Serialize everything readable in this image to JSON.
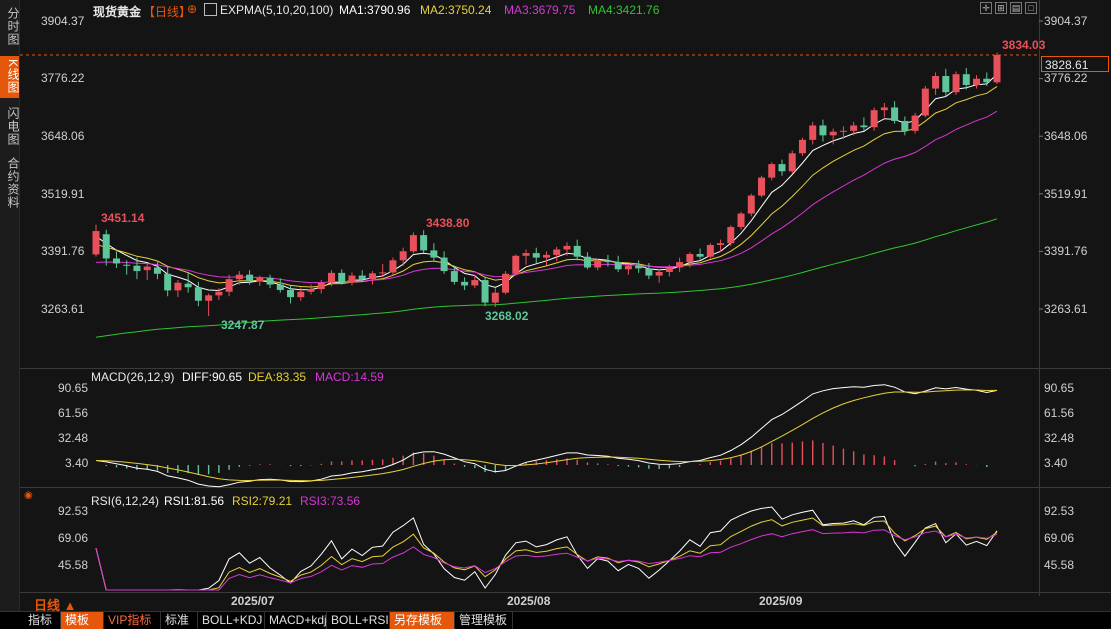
{
  "left_tabs": [
    {
      "label": "分时图",
      "active": false
    },
    {
      "label": "K线图",
      "active": true
    },
    {
      "label": "闪电图",
      "active": false
    },
    {
      "label": "合约资料",
      "active": false
    }
  ],
  "header": {
    "symbol": "现货黄金",
    "period": "【日线】",
    "expma": "EXPMA(5,10,20,100)",
    "ma1": "MA1:3790.96",
    "ma2": "MA2:3750.24",
    "ma3": "MA3:3679.75",
    "ma4": "MA4:3421.76"
  },
  "price_axis": [
    "3904.37",
    "3776.22",
    "3648.06",
    "3519.91",
    "3391.76",
    "3263.61"
  ],
  "current_price_tag": "3828.61",
  "annotations": {
    "high": "3834.03",
    "peak1": "3451.14",
    "peak2": "3438.80",
    "low1": "3247.87",
    "low2": "3268.02"
  },
  "macd": {
    "title": "MACD(26,12,9)",
    "diff": "DIFF:90.65",
    "dea": "DEA:83.35",
    "macd": "MACD:14.59",
    "axis": [
      "90.65",
      "61.56",
      "32.48",
      "3.40"
    ]
  },
  "rsi": {
    "title": "RSI(6,12,24)",
    "rsi1": "RSI1:81.56",
    "rsi2": "RSI2:79.21",
    "rsi3": "RSI3:73.56",
    "axis": [
      "92.53",
      "69.06",
      "45.58"
    ]
  },
  "x_axis": [
    "2025/07",
    "2025/08",
    "2025/09"
  ],
  "period_label": "日线",
  "bottom_tabs": [
    {
      "label": "指标",
      "style": "normal"
    },
    {
      "label": "模板",
      "style": "orange"
    },
    {
      "label": "VIP指标",
      "style": "vip"
    },
    {
      "label": "标准",
      "style": "normal"
    },
    {
      "label": "BOLL+KDJ",
      "style": "normal"
    },
    {
      "label": "MACD+kdj",
      "style": "normal"
    },
    {
      "label": "BOLL+RSI",
      "style": "normal"
    },
    {
      "label": "另存模板",
      "style": "orange"
    },
    {
      "label": "管理模板",
      "style": "normal"
    }
  ],
  "colors": {
    "up": "#e8505b",
    "down": "#5fc59a",
    "ma1": "#ffffff",
    "ma2": "#e8d03a",
    "ma3": "#d637d6",
    "ma4": "#2fc52f",
    "accent": "#e5580c"
  },
  "chart_data": {
    "type": "candlestick",
    "instrument": "现货黄金",
    "period": "日线",
    "ohlc": [
      [
        3385,
        3451.14,
        3380,
        3437
      ],
      [
        3430,
        3440,
        3360,
        3376
      ],
      [
        3376,
        3392,
        3355,
        3365
      ],
      [
        3362,
        3372,
        3340,
        3360
      ],
      [
        3360,
        3378,
        3330,
        3348
      ],
      [
        3350,
        3366,
        3328,
        3358
      ],
      [
        3356,
        3368,
        3330,
        3342
      ],
      [
        3342,
        3358,
        3292,
        3305
      ],
      [
        3305,
        3328,
        3290,
        3322
      ],
      [
        3320,
        3345,
        3300,
        3312
      ],
      [
        3312,
        3324,
        3270,
        3282
      ],
      [
        3282,
        3298,
        3247.87,
        3294
      ],
      [
        3294,
        3310,
        3284,
        3302
      ],
      [
        3302,
        3340,
        3292,
        3330
      ],
      [
        3330,
        3348,
        3318,
        3340
      ],
      [
        3340,
        3350,
        3318,
        3325
      ],
      [
        3325,
        3338,
        3315,
        3333
      ],
      [
        3333,
        3340,
        3310,
        3318
      ],
      [
        3318,
        3332,
        3300,
        3306
      ],
      [
        3306,
        3316,
        3276,
        3290
      ],
      [
        3290,
        3312,
        3282,
        3302
      ],
      [
        3302,
        3318,
        3296,
        3308
      ],
      [
        3308,
        3328,
        3298,
        3322
      ],
      [
        3322,
        3350,
        3314,
        3344
      ],
      [
        3344,
        3352,
        3318,
        3322
      ],
      [
        3322,
        3345,
        3316,
        3338
      ],
      [
        3338,
        3350,
        3324,
        3330
      ],
      [
        3330,
        3348,
        3318,
        3343
      ],
      [
        3343,
        3364,
        3334,
        3345
      ],
      [
        3345,
        3378,
        3340,
        3372
      ],
      [
        3372,
        3400,
        3360,
        3392
      ],
      [
        3392,
        3434,
        3388,
        3428
      ],
      [
        3428,
        3438.8,
        3388,
        3394
      ],
      [
        3394,
        3410,
        3372,
        3378
      ],
      [
        3378,
        3392,
        3342,
        3348
      ],
      [
        3348,
        3360,
        3318,
        3324
      ],
      [
        3324,
        3334,
        3306,
        3316
      ],
      [
        3316,
        3340,
        3310,
        3328
      ],
      [
        3328,
        3336,
        3270,
        3278
      ],
      [
        3278,
        3310,
        3268.02,
        3300
      ],
      [
        3300,
        3348,
        3296,
        3342
      ],
      [
        3342,
        3385,
        3338,
        3382
      ],
      [
        3382,
        3396,
        3362,
        3388
      ],
      [
        3388,
        3400,
        3366,
        3378
      ],
      [
        3378,
        3392,
        3360,
        3384
      ],
      [
        3384,
        3402,
        3370,
        3396
      ],
      [
        3396,
        3412,
        3382,
        3404
      ],
      [
        3404,
        3418,
        3372,
        3380
      ],
      [
        3380,
        3390,
        3352,
        3356
      ],
      [
        3356,
        3376,
        3350,
        3372
      ],
      [
        3372,
        3384,
        3358,
        3368
      ],
      [
        3368,
        3382,
        3346,
        3352
      ],
      [
        3352,
        3364,
        3340,
        3360
      ],
      [
        3360,
        3372,
        3344,
        3354
      ],
      [
        3354,
        3366,
        3330,
        3338
      ],
      [
        3338,
        3352,
        3322,
        3346
      ],
      [
        3346,
        3362,
        3336,
        3356
      ],
      [
        3356,
        3378,
        3346,
        3368
      ],
      [
        3368,
        3390,
        3356,
        3386
      ],
      [
        3386,
        3398,
        3374,
        3380
      ],
      [
        3380,
        3410,
        3376,
        3406
      ],
      [
        3406,
        3418,
        3390,
        3410
      ],
      [
        3410,
        3450,
        3404,
        3446
      ],
      [
        3446,
        3480,
        3440,
        3476
      ],
      [
        3476,
        3520,
        3470,
        3516
      ],
      [
        3516,
        3560,
        3512,
        3556
      ],
      [
        3556,
        3590,
        3550,
        3586
      ],
      [
        3586,
        3596,
        3560,
        3570
      ],
      [
        3570,
        3616,
        3566,
        3610
      ],
      [
        3610,
        3645,
        3604,
        3640
      ],
      [
        3640,
        3680,
        3630,
        3672
      ],
      [
        3672,
        3685,
        3636,
        3650
      ],
      [
        3650,
        3665,
        3630,
        3658
      ],
      [
        3658,
        3670,
        3642,
        3660
      ],
      [
        3660,
        3680,
        3650,
        3672
      ],
      [
        3672,
        3690,
        3660,
        3668
      ],
      [
        3668,
        3712,
        3660,
        3706
      ],
      [
        3706,
        3722,
        3690,
        3712
      ],
      [
        3712,
        3726,
        3676,
        3682
      ],
      [
        3682,
        3692,
        3650,
        3660
      ],
      [
        3660,
        3700,
        3654,
        3694
      ],
      [
        3694,
        3760,
        3690,
        3754
      ],
      [
        3754,
        3790,
        3740,
        3782
      ],
      [
        3782,
        3798,
        3736,
        3746
      ],
      [
        3746,
        3792,
        3740,
        3786
      ],
      [
        3786,
        3800,
        3752,
        3762
      ],
      [
        3762,
        3784,
        3754,
        3776
      ],
      [
        3776,
        3790,
        3760,
        3768
      ],
      [
        3768,
        3834.03,
        3764,
        3828.61
      ]
    ],
    "ma_lines": [
      "MA1",
      "MA2",
      "MA3",
      "MA4"
    ],
    "ma_values": {
      "MA1": 3790.96,
      "MA2": 3750.24,
      "MA3": 3679.75,
      "MA4": 3421.76
    },
    "y_axis_ticks": [
      3904.37,
      3776.22,
      3648.06,
      3519.91,
      3391.76,
      3263.61
    ],
    "x_axis_labels": [
      "2025/07",
      "2025/08",
      "2025/09"
    ],
    "macd_latest": {
      "DIFF": 90.65,
      "DEA": 83.35,
      "MACD": 14.59
    },
    "rsi_latest": {
      "RSI1": 81.56,
      "RSI2": 79.21,
      "RSI3": 73.56
    }
  }
}
